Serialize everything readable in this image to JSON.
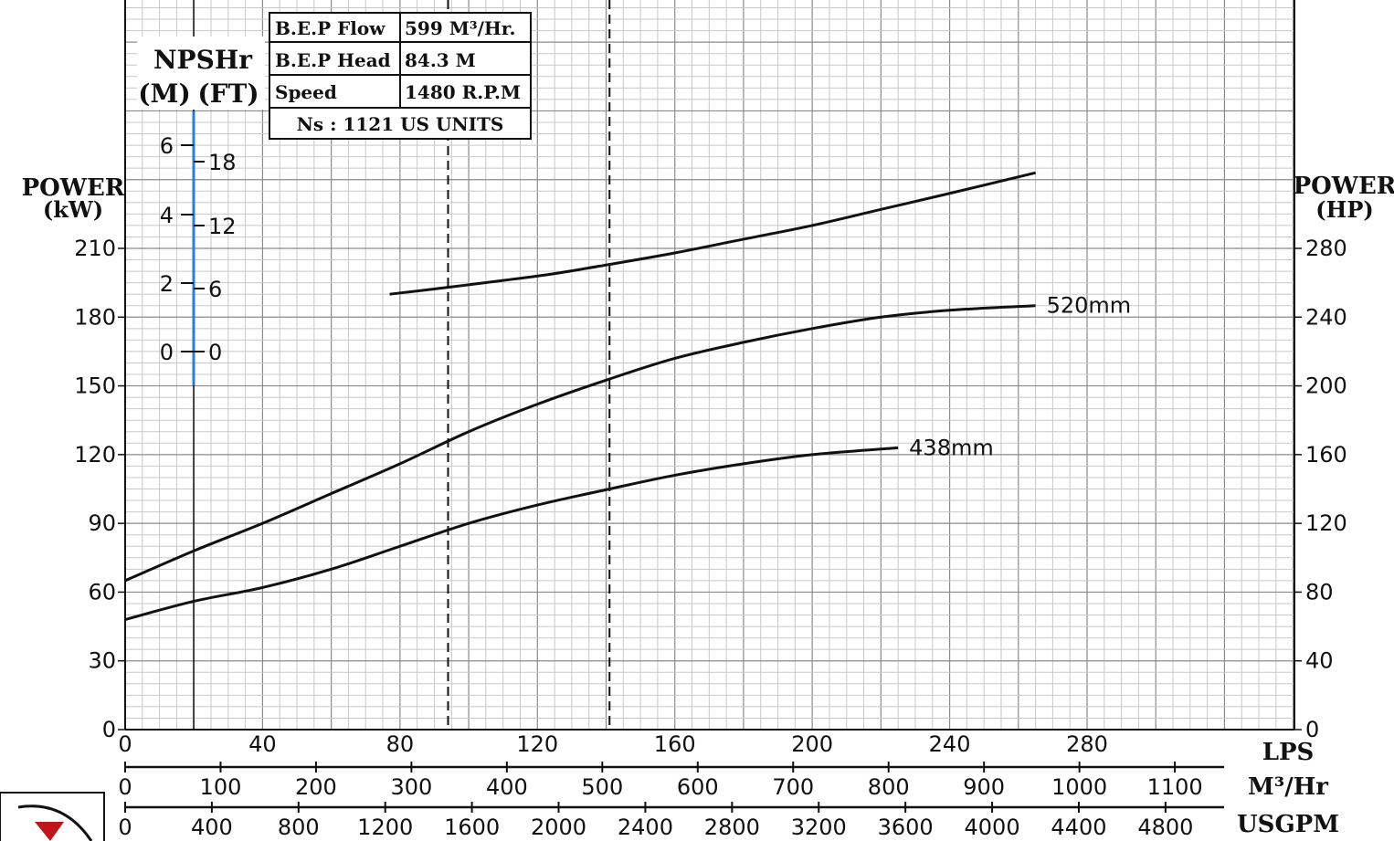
{
  "chart_data": {
    "type": "line",
    "title": "",
    "bep_table": {
      "rows": [
        {
          "label": "B.E.P Flow",
          "value": "599 M³/Hr."
        },
        {
          "label": "B.E.P Head",
          "value": "84.3 M"
        },
        {
          "label": "Speed",
          "value": "1480 R.P.M"
        }
      ],
      "footer": "Ns : 1121 US UNITS"
    },
    "npsh_axis": {
      "title": "NPSHr",
      "left_unit": "(M)",
      "right_unit": "(FT)",
      "m_ticks": [
        "6",
        "4",
        "2",
        "0"
      ],
      "ft_ticks": [
        "18",
        "12",
        "6",
        "0"
      ]
    },
    "y_left": {
      "label_line1": "POWER",
      "label_line2": "(kW)",
      "ticks": [
        0,
        30,
        60,
        90,
        120,
        150,
        180,
        210
      ],
      "ylim": [
        0,
        210
      ]
    },
    "y_right": {
      "label_line1": "POWER",
      "label_line2": "(HP)",
      "ticks": [
        0,
        40,
        80,
        120,
        160,
        200,
        240,
        280
      ]
    },
    "x_lps": {
      "label": "LPS",
      "ticks": [
        0,
        40,
        80,
        120,
        160,
        200,
        240,
        280
      ],
      "xlim": [
        0,
        340
      ]
    },
    "x_m3hr": {
      "label": "M³/Hr",
      "ticks": [
        0,
        100,
        200,
        300,
        400,
        500,
        600,
        700,
        800,
        900,
        1000,
        1100
      ]
    },
    "x_usgpm": {
      "label": "USGPM",
      "ticks": [
        0,
        400,
        800,
        1200,
        1600,
        2000,
        2400,
        2800,
        3200,
        3600,
        4000,
        4400,
        4800
      ]
    },
    "reference_lines_lps": [
      94,
      141
    ],
    "series": [
      {
        "name": "",
        "x": [
          77,
          94,
          110,
          125,
          141,
          160,
          180,
          200,
          220,
          240,
          265
        ],
        "y": [
          190,
          193,
          196,
          199,
          203,
          208,
          214,
          220,
          227,
          234,
          243
        ]
      },
      {
        "name": "520mm",
        "x": [
          0,
          20,
          40,
          60,
          80,
          100,
          120,
          141,
          160,
          180,
          200,
          220,
          240,
          265
        ],
        "y": [
          65,
          78,
          90,
          103,
          116,
          130,
          142,
          153,
          162,
          169,
          175,
          180,
          183,
          185
        ]
      },
      {
        "name": "438mm",
        "x": [
          0,
          20,
          40,
          60,
          80,
          100,
          120,
          141,
          160,
          180,
          200,
          225
        ],
        "y": [
          48,
          56,
          62,
          70,
          80,
          90,
          98,
          105,
          111,
          116,
          120,
          123
        ]
      }
    ]
  }
}
